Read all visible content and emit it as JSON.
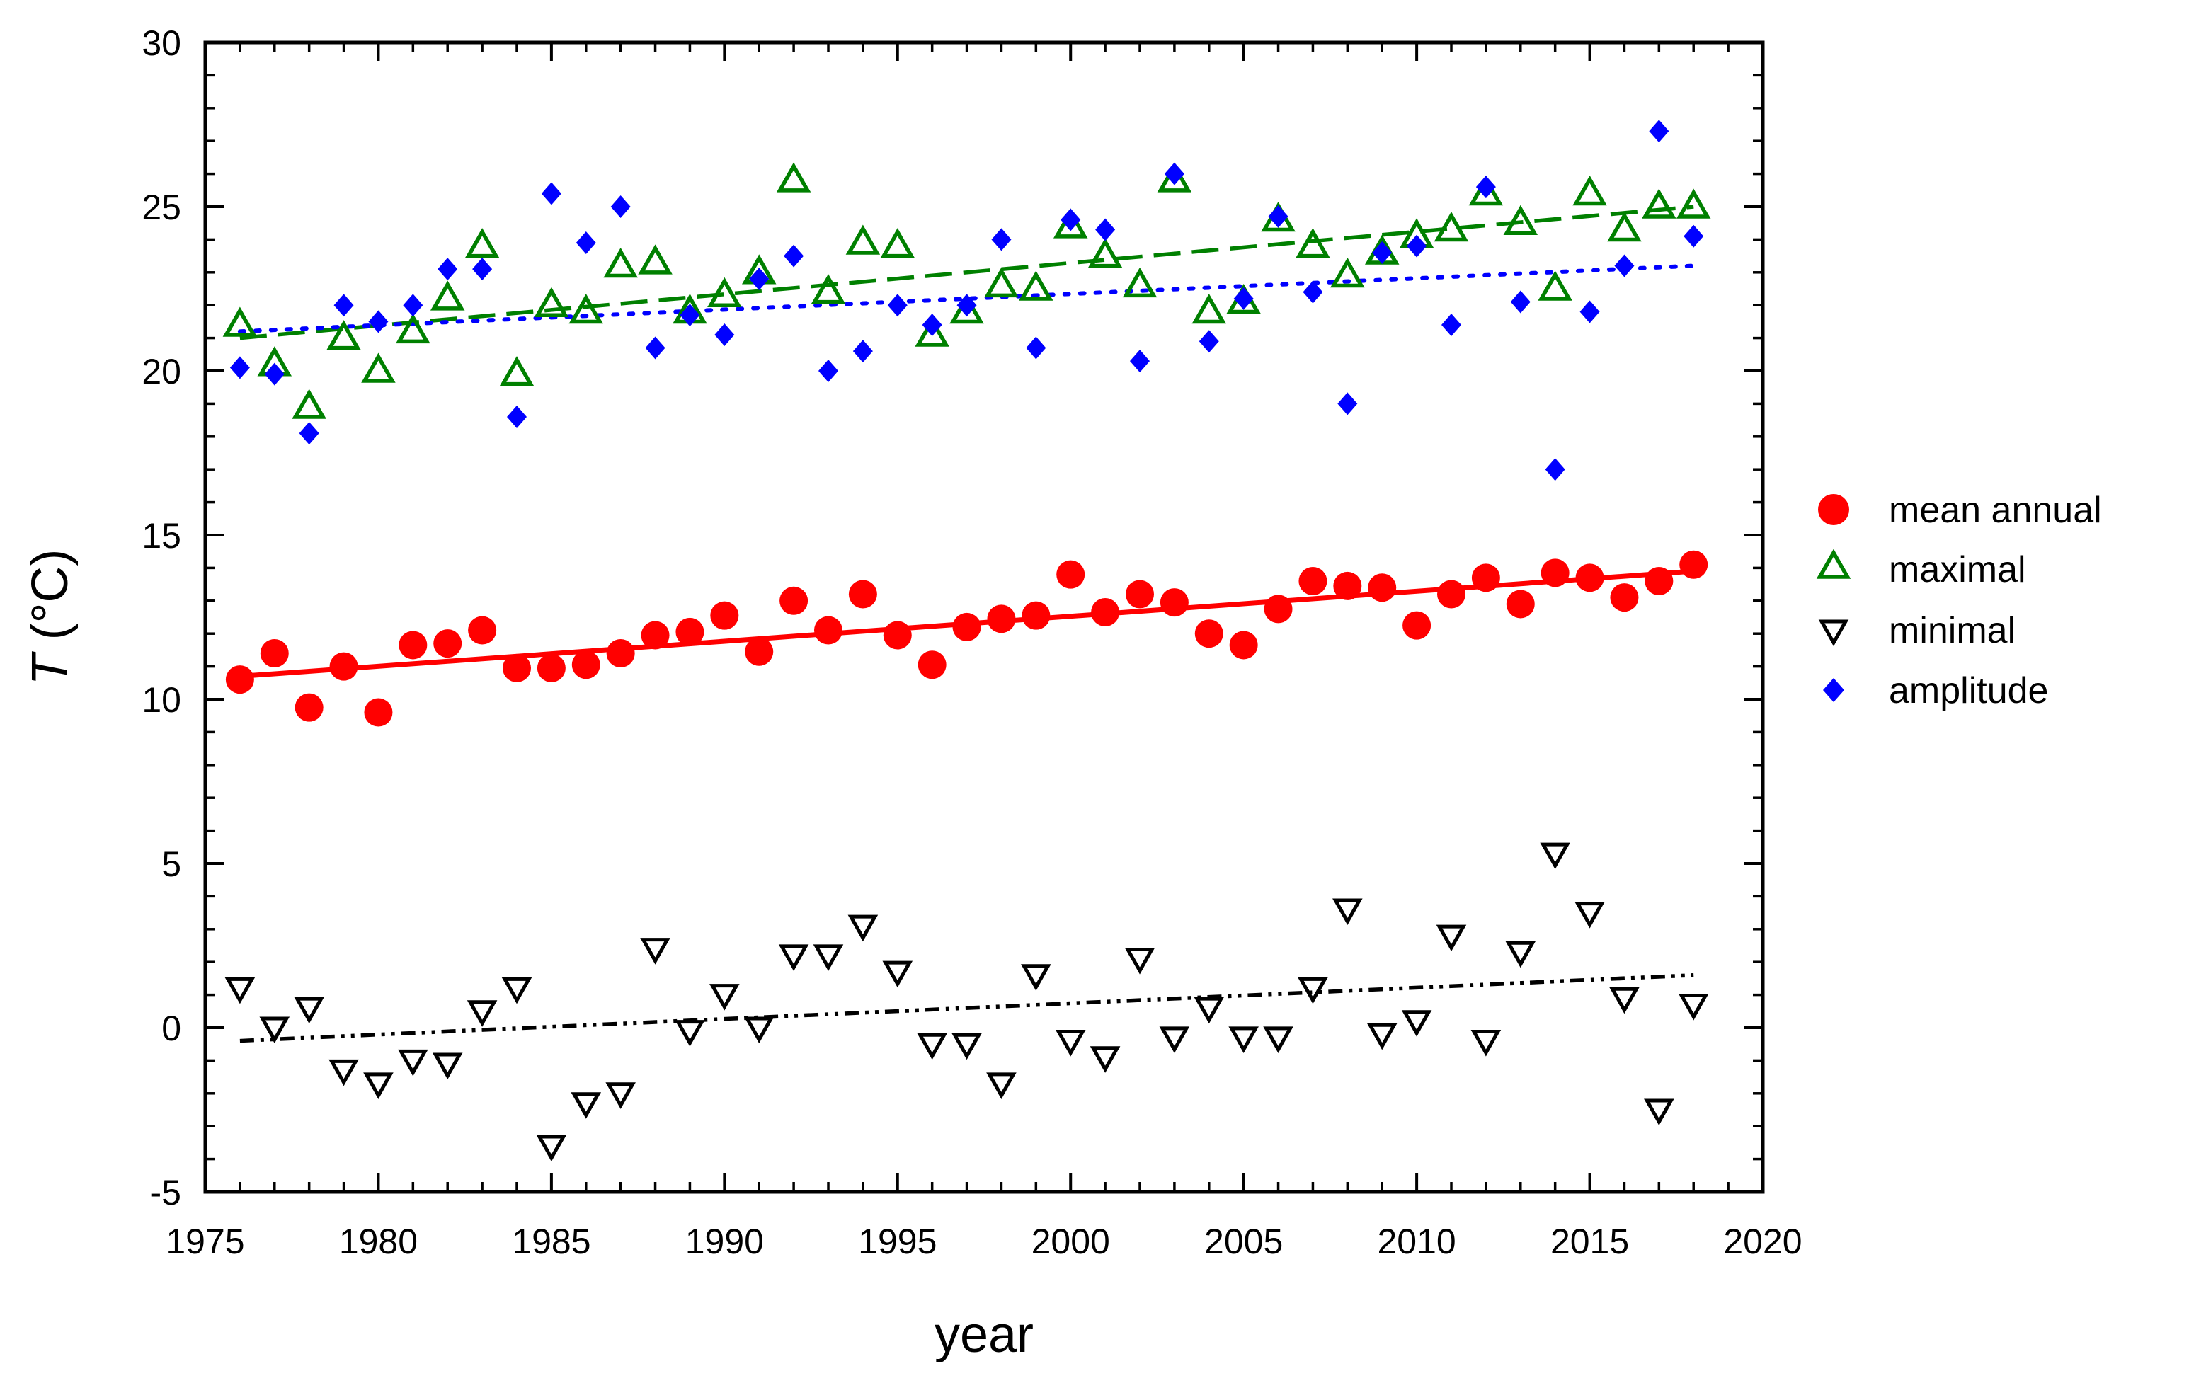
{
  "chart_data": {
    "type": "scatter",
    "title": "",
    "xlabel": "year",
    "ylabel_symbol": "T",
    "ylabel_unit": " (°C)",
    "xlim": [
      1975,
      2020
    ],
    "ylim": [
      -5,
      30
    ],
    "xticks": [
      1975,
      1980,
      1985,
      1990,
      1995,
      2000,
      2005,
      2010,
      2015,
      2020
    ],
    "yticks": [
      -5,
      0,
      5,
      10,
      15,
      20,
      25,
      30
    ],
    "minor_step_x": 1,
    "minor_step_y": 1,
    "grid": false,
    "legend_position": "right",
    "x": [
      1976,
      1977,
      1978,
      1979,
      1980,
      1981,
      1982,
      1983,
      1984,
      1985,
      1986,
      1987,
      1988,
      1989,
      1990,
      1991,
      1992,
      1993,
      1994,
      1995,
      1996,
      1997,
      1998,
      1999,
      2000,
      2001,
      2002,
      2003,
      2004,
      2005,
      2006,
      2007,
      2008,
      2009,
      2010,
      2011,
      2012,
      2013,
      2014,
      2015,
      2016,
      2017,
      2018
    ],
    "series": [
      {
        "name": "mean annual",
        "marker": "circle",
        "color": "#ff0000",
        "values": [
          10.6,
          11.4,
          9.75,
          11.0,
          9.6,
          11.65,
          11.7,
          12.1,
          10.95,
          10.95,
          11.05,
          11.4,
          11.95,
          12.05,
          12.55,
          11.45,
          13.0,
          12.1,
          13.2,
          11.95,
          11.05,
          12.2,
          12.45,
          12.55,
          13.8,
          12.65,
          13.2,
          12.95,
          12.0,
          11.65,
          12.75,
          13.6,
          13.45,
          13.4,
          12.25,
          13.2,
          13.7,
          12.9,
          13.85,
          13.7,
          13.1,
          13.6,
          14.1
        ],
        "trend": {
          "style": "solid",
          "start": [
            1976,
            10.7
          ],
          "end": [
            2018,
            13.9
          ]
        }
      },
      {
        "name": "maximal",
        "marker": "triangle-up",
        "color": "#008000",
        "values": [
          21.4,
          20.2,
          18.9,
          21.0,
          20.0,
          21.2,
          22.2,
          23.8,
          19.9,
          22.0,
          21.8,
          23.2,
          23.3,
          21.8,
          22.3,
          23.0,
          25.8,
          22.4,
          23.9,
          23.8,
          21.1,
          21.8,
          22.6,
          22.5,
          24.4,
          23.5,
          22.6,
          25.8,
          21.8,
          22.1,
          24.6,
          23.8,
          22.9,
          23.6,
          24.1,
          24.3,
          25.4,
          24.5,
          22.5,
          25.4,
          24.3,
          25.0,
          25.0
        ],
        "trend": {
          "style": "dashed",
          "start": [
            1976,
            21.0
          ],
          "end": [
            2018,
            25.0
          ]
        }
      },
      {
        "name": "minimal",
        "marker": "triangle-down",
        "color": "#000000",
        "values": [
          1.2,
          0.0,
          0.6,
          -1.3,
          -1.7,
          -1.0,
          -1.1,
          0.5,
          1.2,
          -3.6,
          -2.3,
          -2.0,
          2.4,
          -0.1,
          1.0,
          0.0,
          2.2,
          2.2,
          3.1,
          1.7,
          -0.5,
          -0.5,
          -1.7,
          1.6,
          -0.4,
          -0.9,
          2.1,
          -0.3,
          0.6,
          -0.3,
          -0.3,
          1.2,
          3.6,
          -0.2,
          0.2,
          2.8,
          -0.4,
          2.3,
          5.3,
          3.5,
          0.9,
          -2.5,
          0.7
        ],
        "trend": {
          "style": "dash-dot-dot",
          "start": [
            1976,
            -0.4
          ],
          "end": [
            2018,
            1.6
          ]
        }
      },
      {
        "name": "amplitude",
        "marker": "diamond",
        "color": "#0000ff",
        "values": [
          20.1,
          19.9,
          18.1,
          22.0,
          21.5,
          22.0,
          23.1,
          23.1,
          18.6,
          25.4,
          23.9,
          25.0,
          20.7,
          21.7,
          21.1,
          22.8,
          23.5,
          20.0,
          20.6,
          22.0,
          21.4,
          22.0,
          24.0,
          20.7,
          24.6,
          24.3,
          20.3,
          26.0,
          20.9,
          22.2,
          24.7,
          22.4,
          19.0,
          23.6,
          23.8,
          21.4,
          25.6,
          22.1,
          17.0,
          21.8,
          23.2,
          27.3,
          24.1
        ],
        "trend": {
          "style": "dotted",
          "start": [
            1976,
            21.2
          ],
          "end": [
            2018,
            23.2
          ]
        }
      }
    ]
  }
}
